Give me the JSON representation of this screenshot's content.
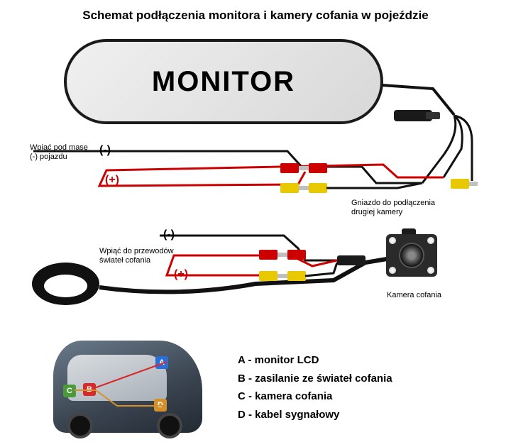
{
  "title": "Schemat podłączenia monitora i kamery cofania w pojeździe",
  "monitor_label": "MONITOR",
  "labels": {
    "ground_vehicle": "Wpiąć pod masę\n(-) pojazdu",
    "neg1": "(-)",
    "pos1": "(+)",
    "second_camera": "Gniazdo do podłączenia\ndrugiej kamery",
    "neg2": "(-)",
    "reverse_light": "Wpiąć do przewodów\nświateł cofania",
    "pos2": "(+)",
    "camera": "Kamera cofania"
  },
  "legend": {
    "A": "A - monitor LCD",
    "B": "B - zasilanie ze świateł cofania",
    "C": "C - kamera cofania",
    "D": "D - kabel sygnałowy"
  },
  "colors": {
    "wire_red": "#cc0000",
    "wire_black": "#111111",
    "wire_yellow": "#e8c800",
    "rca_red": "#cc0000",
    "rca_yellow": "#e8c800",
    "vA": "#2a6fd6",
    "vB": "#d62a2a",
    "vC": "#4a9a3a",
    "vD": "#d6902a"
  },
  "stroke_widths": {
    "thin": 2,
    "thick": 4
  }
}
